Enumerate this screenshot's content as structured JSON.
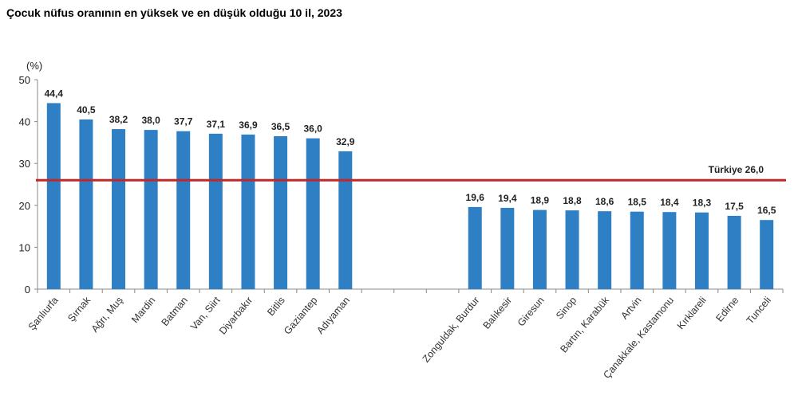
{
  "chart_data": {
    "type": "bar",
    "title": "Çocuk nüfus oranının en yüksek ve en düşük olduğu 10 il, 2023",
    "ylabel": "(%)",
    "ylim": [
      0,
      50
    ],
    "yticks": [
      0,
      10,
      20,
      30,
      40,
      50
    ],
    "grid": false,
    "bar_color": "#2e7fc4",
    "reference_line": {
      "label": "Türkiye 26,0",
      "value": 26.0,
      "color": "#c0282a"
    },
    "categories": [
      "Şanlıurfa",
      "Şırnak",
      "Ağrı, Muş",
      "Mardin",
      "Batman",
      "Van, Siirt",
      "Diyarbakır",
      "Bitlis",
      "Gaziantep",
      "Adıyaman",
      "",
      "",
      "",
      "Zonguldak, Burdur",
      "Balıkesir",
      "Giresun",
      "Sinop",
      "Bartın, Karabük",
      "Artvin",
      "Çanakkale, Kastamonu",
      "Kırklareli",
      "Edirne",
      "Tunceli"
    ],
    "values": [
      44.4,
      40.5,
      38.2,
      38.0,
      37.7,
      37.1,
      36.9,
      36.5,
      36.0,
      32.9,
      null,
      null,
      null,
      19.6,
      19.4,
      18.9,
      18.8,
      18.6,
      18.5,
      18.4,
      18.3,
      17.5,
      16.5
    ],
    "value_labels": [
      "44,4",
      "40,5",
      "38,2",
      "38,0",
      "37,7",
      "37,1",
      "36,9",
      "36,5",
      "36,0",
      "32,9",
      "",
      "",
      "",
      "19,6",
      "19,4",
      "18,9",
      "18,8",
      "18,6",
      "18,5",
      "18,4",
      "18,3",
      "17,5",
      "16,5"
    ]
  }
}
